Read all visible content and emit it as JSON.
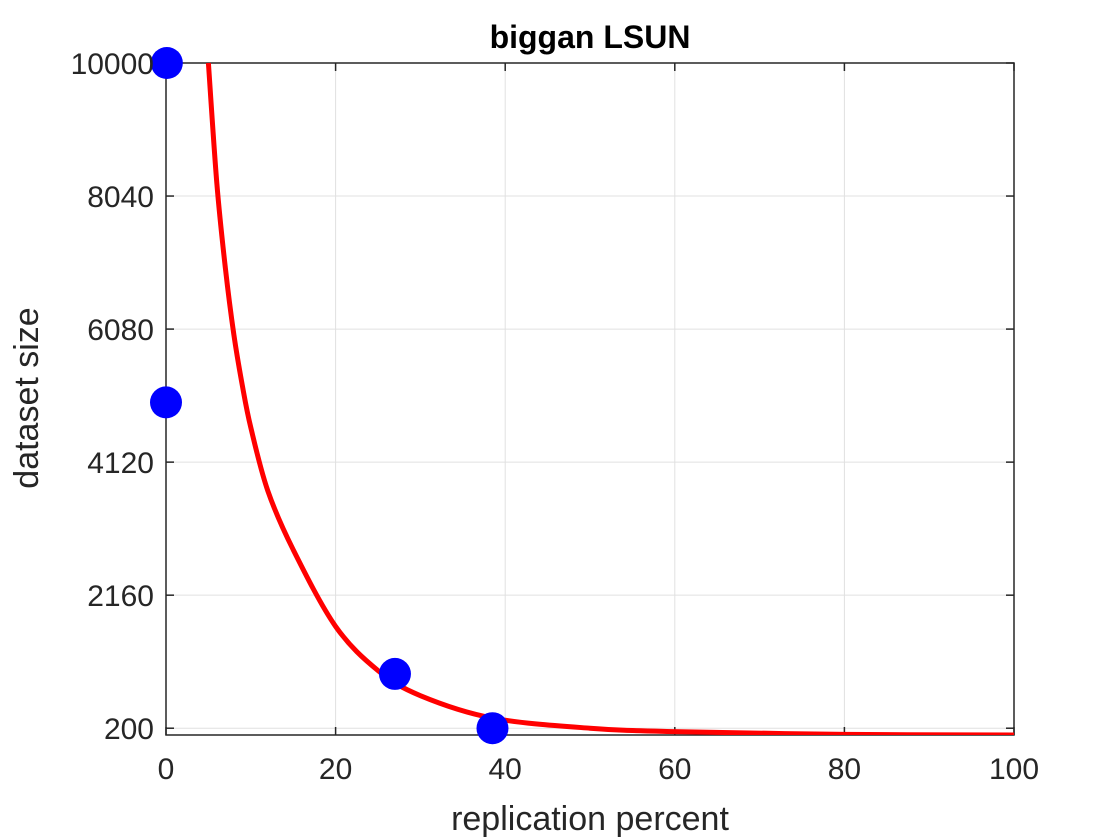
{
  "chart_data": {
    "type": "scatter",
    "title": "biggan LSUN",
    "xlabel": "replication percent",
    "ylabel": "dataset size",
    "xlim": [
      0,
      100
    ],
    "ylim": [
      100,
      10000
    ],
    "xticks": [
      0,
      20,
      40,
      60,
      80,
      100
    ],
    "yticks": [
      200,
      2160,
      4120,
      6080,
      8040,
      10000
    ],
    "xtick_labels": [
      "0",
      "20",
      "40",
      "60",
      "80",
      "100"
    ],
    "ytick_labels": [
      "200",
      "2160",
      "4120",
      "6080",
      "8040",
      "10000"
    ],
    "grid": true,
    "series": [
      {
        "kind": "points",
        "color": "#0000ff",
        "x": [
          0.1,
          0.0,
          27.0,
          38.5
        ],
        "y": [
          10000,
          5000,
          1000,
          200
        ]
      },
      {
        "kind": "fitted-curve",
        "color": "#ff0000",
        "x": [
          5.0,
          6,
          7,
          8,
          9,
          10,
          12,
          15,
          20,
          25,
          30,
          38.5,
          50,
          60,
          80,
          100
        ],
        "y": [
          10000,
          8220,
          6980,
          6000,
          5250,
          4630,
          3700,
          2830,
          1700,
          1050,
          680,
          350,
          200,
          150,
          110,
          100
        ]
      }
    ]
  }
}
